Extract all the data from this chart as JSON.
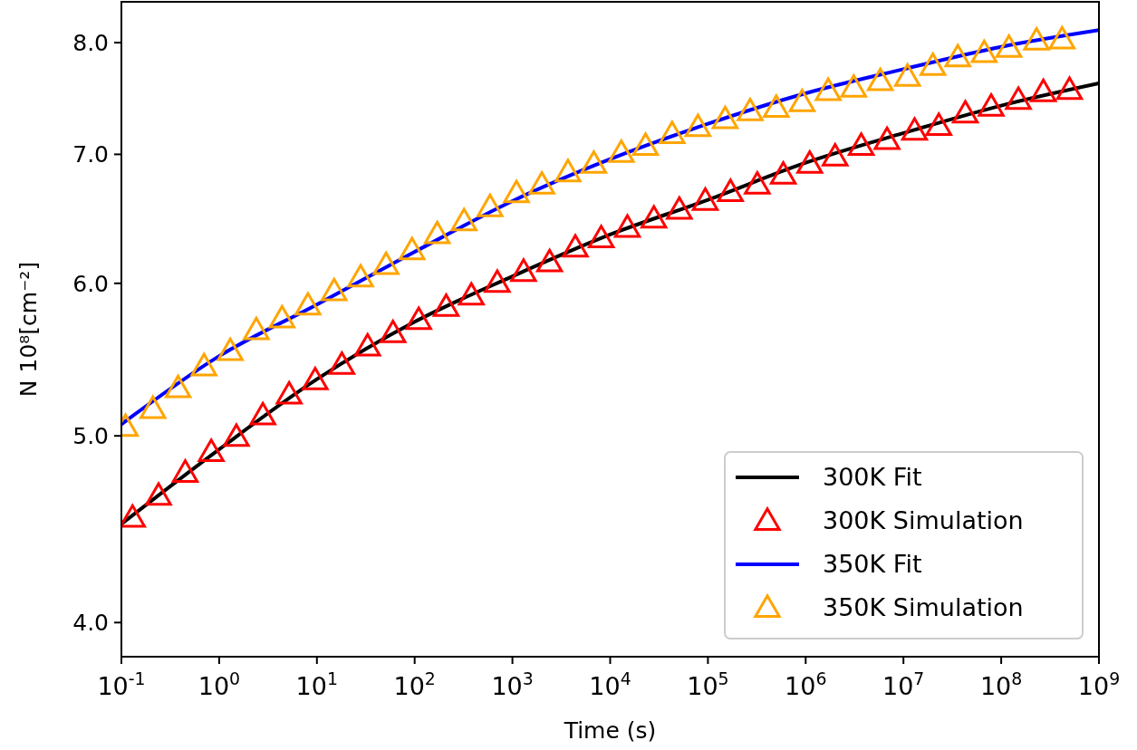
{
  "chart_data": {
    "type": "line",
    "xlabel": "Time (s)",
    "ylabel": "N 10⁸[cm⁻²]",
    "log": "xy",
    "xlim": [
      0.1,
      1000000000
    ],
    "ylim": [
      3.84,
      8.4
    ],
    "xticks": [
      {
        "value": 0.1,
        "label": "10$^{-1}$"
      },
      {
        "value": 1,
        "label": "10$^{0}$"
      },
      {
        "value": 10,
        "label": "10$^{1}$"
      },
      {
        "value": 100,
        "label": "10$^{2}$"
      },
      {
        "value": 1000,
        "label": "10$^{3}$"
      },
      {
        "value": 10000,
        "label": "10$^{4}$"
      },
      {
        "value": 100000,
        "label": "10$^{5}$"
      },
      {
        "value": 1000000,
        "label": "10$^{6}$"
      },
      {
        "value": 10000000,
        "label": "10$^{7}$"
      },
      {
        "value": 100000000,
        "label": "10$^{8}$"
      },
      {
        "value": 1000000000,
        "label": "10$^{9}$"
      }
    ],
    "yticks": [
      {
        "value": 4,
        "label": "4.0"
      },
      {
        "value": 5,
        "label": "5.0"
      },
      {
        "value": 6,
        "label": "6.0"
      },
      {
        "value": 7,
        "label": "7.0"
      },
      {
        "value": 8,
        "label": "8.0"
      }
    ],
    "grid": false,
    "legend": "bottom right",
    "series": [
      {
        "name": "300K Fit",
        "color": "#000000",
        "line_style": "solid",
        "x": [
          0.1,
          1,
          10,
          100,
          1000,
          10000,
          100000,
          1000000,
          10000000,
          100000000,
          1000000000
        ],
        "values": [
          4.5,
          4.92,
          5.35,
          5.73,
          6.05,
          6.36,
          6.63,
          6.93,
          7.18,
          7.42,
          7.62
        ]
      },
      {
        "name": "300K Simulation",
        "type": "scatter",
        "color": "#ff0000",
        "marker": "triangle",
        "x": [
          0.13,
          0.24,
          0.45,
          0.83,
          1.5,
          2.8,
          5.2,
          9.6,
          18,
          33,
          60,
          110,
          210,
          380,
          700,
          1300,
          2400,
          4400,
          8100,
          15000,
          28000,
          51000,
          94000,
          170000,
          320000,
          590000,
          1100000,
          2000000,
          3700000,
          6800000,
          13000000,
          23000000,
          43000000,
          79000000,
          150000000,
          270000000,
          500000000
        ],
        "values": [
          4.54,
          4.66,
          4.79,
          4.91,
          5.0,
          5.13,
          5.26,
          5.35,
          5.45,
          5.57,
          5.66,
          5.75,
          5.84,
          5.92,
          6.01,
          6.09,
          6.16,
          6.27,
          6.34,
          6.42,
          6.49,
          6.56,
          6.63,
          6.7,
          6.76,
          6.84,
          6.93,
          6.99,
          7.08,
          7.13,
          7.21,
          7.25,
          7.36,
          7.42,
          7.48,
          7.55,
          7.57
        ]
      },
      {
        "name": "350K Fit",
        "color": "#0000ff",
        "line_style": "solid",
        "x": [
          0.1,
          1,
          10,
          100,
          1000,
          10000,
          100000,
          1000000,
          10000000,
          100000000,
          1000000000
        ],
        "values": [
          5.07,
          5.5,
          5.85,
          6.23,
          6.62,
          6.96,
          7.26,
          7.53,
          7.75,
          7.96,
          8.12
        ]
      },
      {
        "name": "350K Simulation",
        "type": "scatter",
        "color": "#ffa500",
        "marker": "triangle",
        "x": [
          0.11,
          0.21,
          0.38,
          0.7,
          1.3,
          2.4,
          4.4,
          8.1,
          15,
          28,
          51,
          94,
          170,
          320,
          590,
          1100,
          2000,
          3700,
          6800,
          13000,
          23000,
          43000,
          79000,
          150000,
          270000,
          500000,
          920000,
          1700000,
          3100000,
          5800000,
          11000000,
          20000000,
          36000000,
          67000000,
          120000000,
          230000000,
          420000000
        ],
        "values": [
          5.06,
          5.17,
          5.3,
          5.44,
          5.54,
          5.68,
          5.76,
          5.85,
          5.95,
          6.05,
          6.14,
          6.25,
          6.37,
          6.47,
          6.58,
          6.69,
          6.76,
          6.86,
          6.93,
          7.02,
          7.08,
          7.18,
          7.24,
          7.31,
          7.38,
          7.41,
          7.46,
          7.56,
          7.59,
          7.65,
          7.69,
          7.79,
          7.87,
          7.91,
          7.96,
          8.03,
          8.04
        ]
      }
    ]
  }
}
